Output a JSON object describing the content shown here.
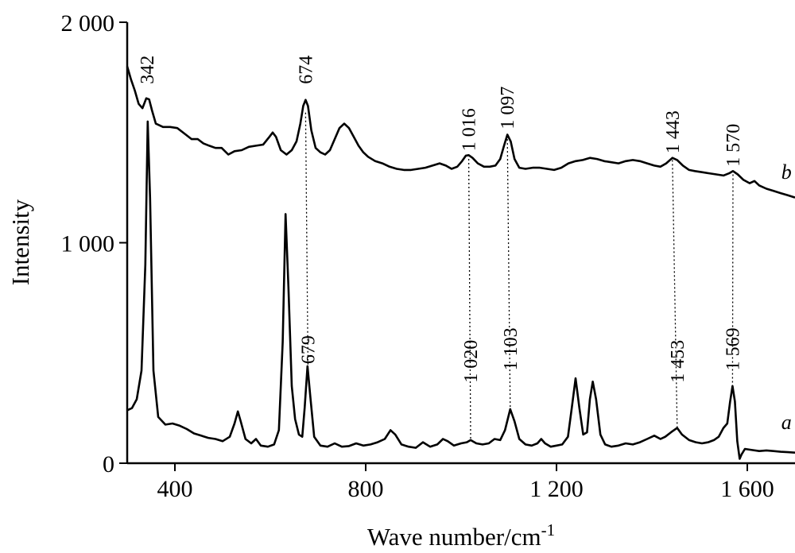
{
  "chart_data": {
    "type": "line",
    "xlabel": "Wave number/cm",
    "xlabel_sup": "-1",
    "ylabel": "Intensity",
    "xlim": [
      300,
      1700
    ],
    "ylim": [
      0,
      2000
    ],
    "x_ticks": [
      {
        "value": 400,
        "label": "400"
      },
      {
        "value": 800,
        "label": "800"
      },
      {
        "value": 1200,
        "label": "1 200"
      },
      {
        "value": 1600,
        "label": "1 600"
      }
    ],
    "y_ticks": [
      {
        "value": 0,
        "label": "0"
      },
      {
        "value": 1000,
        "label": "1 000"
      },
      {
        "value": 2000,
        "label": "2 000"
      }
    ],
    "grid": false,
    "series": [
      {
        "name": "a",
        "color": "#000000",
        "points": [
          [
            300,
            240
          ],
          [
            310,
            250
          ],
          [
            320,
            290
          ],
          [
            330,
            420
          ],
          [
            338,
            900
          ],
          [
            343,
            1550
          ],
          [
            348,
            1200
          ],
          [
            355,
            420
          ],
          [
            365,
            210
          ],
          [
            380,
            175
          ],
          [
            395,
            180
          ],
          [
            410,
            170
          ],
          [
            425,
            155
          ],
          [
            440,
            135
          ],
          [
            455,
            125
          ],
          [
            470,
            115
          ],
          [
            485,
            110
          ],
          [
            500,
            100
          ],
          [
            515,
            120
          ],
          [
            525,
            180
          ],
          [
            532,
            235
          ],
          [
            538,
            190
          ],
          [
            548,
            110
          ],
          [
            560,
            90
          ],
          [
            570,
            110
          ],
          [
            580,
            80
          ],
          [
            595,
            75
          ],
          [
            608,
            85
          ],
          [
            618,
            150
          ],
          [
            626,
            550
          ],
          [
            632,
            1130
          ],
          [
            638,
            800
          ],
          [
            645,
            350
          ],
          [
            652,
            200
          ],
          [
            660,
            130
          ],
          [
            667,
            120
          ],
          [
            672,
            250
          ],
          [
            678,
            440
          ],
          [
            684,
            300
          ],
          [
            692,
            120
          ],
          [
            705,
            80
          ],
          [
            720,
            75
          ],
          [
            735,
            90
          ],
          [
            750,
            75
          ],
          [
            765,
            78
          ],
          [
            780,
            90
          ],
          [
            795,
            80
          ],
          [
            810,
            85
          ],
          [
            825,
            95
          ],
          [
            840,
            110
          ],
          [
            852,
            150
          ],
          [
            862,
            130
          ],
          [
            875,
            85
          ],
          [
            890,
            75
          ],
          [
            905,
            70
          ],
          [
            920,
            95
          ],
          [
            935,
            75
          ],
          [
            950,
            85
          ],
          [
            962,
            110
          ],
          [
            972,
            100
          ],
          [
            985,
            80
          ],
          [
            1000,
            90
          ],
          [
            1012,
            95
          ],
          [
            1020,
            105
          ],
          [
            1032,
            90
          ],
          [
            1045,
            85
          ],
          [
            1058,
            90
          ],
          [
            1070,
            110
          ],
          [
            1082,
            105
          ],
          [
            1092,
            150
          ],
          [
            1103,
            245
          ],
          [
            1112,
            190
          ],
          [
            1122,
            110
          ],
          [
            1135,
            85
          ],
          [
            1148,
            80
          ],
          [
            1160,
            90
          ],
          [
            1168,
            110
          ],
          [
            1176,
            90
          ],
          [
            1188,
            75
          ],
          [
            1200,
            80
          ],
          [
            1212,
            85
          ],
          [
            1224,
            120
          ],
          [
            1232,
            250
          ],
          [
            1240,
            385
          ],
          [
            1248,
            250
          ],
          [
            1256,
            130
          ],
          [
            1264,
            140
          ],
          [
            1270,
            290
          ],
          [
            1276,
            370
          ],
          [
            1283,
            290
          ],
          [
            1292,
            130
          ],
          [
            1302,
            85
          ],
          [
            1315,
            75
          ],
          [
            1330,
            80
          ],
          [
            1345,
            90
          ],
          [
            1360,
            85
          ],
          [
            1375,
            95
          ],
          [
            1390,
            110
          ],
          [
            1405,
            125
          ],
          [
            1418,
            110
          ],
          [
            1428,
            120
          ],
          [
            1440,
            140
          ],
          [
            1453,
            160
          ],
          [
            1463,
            130
          ],
          [
            1478,
            105
          ],
          [
            1492,
            95
          ],
          [
            1505,
            90
          ],
          [
            1518,
            95
          ],
          [
            1530,
            105
          ],
          [
            1540,
            120
          ],
          [
            1550,
            160
          ],
          [
            1558,
            180
          ],
          [
            1564,
            280
          ],
          [
            1569,
            350
          ],
          [
            1574,
            280
          ],
          [
            1579,
            100
          ],
          [
            1584,
            20
          ],
          [
            1588,
            40
          ],
          [
            1595,
            65
          ],
          [
            1610,
            60
          ],
          [
            1625,
            55
          ],
          [
            1640,
            58
          ],
          [
            1655,
            55
          ],
          [
            1670,
            52
          ],
          [
            1685,
            50
          ],
          [
            1700,
            48
          ]
        ]
      },
      {
        "name": "b",
        "color": "#000000",
        "points": [
          [
            300,
            1800
          ],
          [
            308,
            1740
          ],
          [
            316,
            1690
          ],
          [
            324,
            1630
          ],
          [
            332,
            1610
          ],
          [
            340,
            1655
          ],
          [
            346,
            1650
          ],
          [
            352,
            1600
          ],
          [
            360,
            1540
          ],
          [
            375,
            1525
          ],
          [
            390,
            1525
          ],
          [
            405,
            1520
          ],
          [
            420,
            1495
          ],
          [
            435,
            1470
          ],
          [
            448,
            1470
          ],
          [
            460,
            1450
          ],
          [
            472,
            1440
          ],
          [
            485,
            1430
          ],
          [
            498,
            1430
          ],
          [
            512,
            1400
          ],
          [
            525,
            1415
          ],
          [
            540,
            1420
          ],
          [
            555,
            1435
          ],
          [
            570,
            1440
          ],
          [
            585,
            1445
          ],
          [
            598,
            1480
          ],
          [
            605,
            1500
          ],
          [
            612,
            1480
          ],
          [
            622,
            1420
          ],
          [
            634,
            1400
          ],
          [
            645,
            1420
          ],
          [
            655,
            1460
          ],
          [
            663,
            1540
          ],
          [
            669,
            1620
          ],
          [
            674,
            1648
          ],
          [
            679,
            1620
          ],
          [
            686,
            1510
          ],
          [
            695,
            1430
          ],
          [
            705,
            1410
          ],
          [
            715,
            1400
          ],
          [
            725,
            1420
          ],
          [
            735,
            1470
          ],
          [
            745,
            1520
          ],
          [
            755,
            1540
          ],
          [
            765,
            1520
          ],
          [
            775,
            1480
          ],
          [
            785,
            1440
          ],
          [
            795,
            1410
          ],
          [
            805,
            1390
          ],
          [
            820,
            1370
          ],
          [
            835,
            1360
          ],
          [
            850,
            1345
          ],
          [
            865,
            1335
          ],
          [
            880,
            1330
          ],
          [
            895,
            1330
          ],
          [
            910,
            1335
          ],
          [
            925,
            1340
          ],
          [
            940,
            1350
          ],
          [
            955,
            1360
          ],
          [
            968,
            1350
          ],
          [
            980,
            1335
          ],
          [
            992,
            1345
          ],
          [
            1002,
            1370
          ],
          [
            1010,
            1395
          ],
          [
            1016,
            1397
          ],
          [
            1024,
            1385
          ],
          [
            1035,
            1360
          ],
          [
            1048,
            1345
          ],
          [
            1060,
            1345
          ],
          [
            1072,
            1350
          ],
          [
            1082,
            1380
          ],
          [
            1090,
            1440
          ],
          [
            1097,
            1490
          ],
          [
            1104,
            1460
          ],
          [
            1112,
            1380
          ],
          [
            1122,
            1340
          ],
          [
            1135,
            1335
          ],
          [
            1150,
            1340
          ],
          [
            1165,
            1340
          ],
          [
            1180,
            1335
          ],
          [
            1195,
            1330
          ],
          [
            1210,
            1340
          ],
          [
            1225,
            1360
          ],
          [
            1240,
            1370
          ],
          [
            1255,
            1375
          ],
          [
            1270,
            1385
          ],
          [
            1285,
            1380
          ],
          [
            1300,
            1370
          ],
          [
            1315,
            1365
          ],
          [
            1330,
            1360
          ],
          [
            1345,
            1370
          ],
          [
            1360,
            1375
          ],
          [
            1375,
            1370
          ],
          [
            1390,
            1360
          ],
          [
            1405,
            1350
          ],
          [
            1418,
            1345
          ],
          [
            1430,
            1360
          ],
          [
            1443,
            1385
          ],
          [
            1453,
            1375
          ],
          [
            1465,
            1350
          ],
          [
            1478,
            1330
          ],
          [
            1490,
            1325
          ],
          [
            1505,
            1320
          ],
          [
            1520,
            1315
          ],
          [
            1535,
            1310
          ],
          [
            1550,
            1305
          ],
          [
            1562,
            1315
          ],
          [
            1570,
            1325
          ],
          [
            1580,
            1310
          ],
          [
            1592,
            1285
          ],
          [
            1605,
            1270
          ],
          [
            1615,
            1280
          ],
          [
            1625,
            1260
          ],
          [
            1640,
            1245
          ],
          [
            1655,
            1235
          ],
          [
            1670,
            1225
          ],
          [
            1685,
            1215
          ],
          [
            1700,
            1205
          ]
        ]
      }
    ],
    "peak_labels_b": [
      {
        "x": 342,
        "label": "342",
        "y_top": 1720
      },
      {
        "x": 674,
        "label": "674",
        "y_top": 1720
      },
      {
        "x": 1016,
        "label": "1 016",
        "y_top": 1415
      },
      {
        "x": 1097,
        "label": "1 097",
        "y_top": 1515
      },
      {
        "x": 1443,
        "label": "1 443",
        "y_top": 1405
      },
      {
        "x": 1570,
        "label": "1 570",
        "y_top": 1345
      }
    ],
    "peak_labels_a": [
      {
        "x": 679,
        "label": "679",
        "y_top": 450
      },
      {
        "x": 1020,
        "label": "1 020",
        "y_top": 365
      },
      {
        "x": 1103,
        "label": "1 103",
        "y_top": 420
      },
      {
        "x": 1453,
        "label": "1 453",
        "y_top": 365
      },
      {
        "x": 1569,
        "label": "1 569",
        "y_top": 420
      }
    ],
    "guide_lines": [
      {
        "x1": 674,
        "y1": 1590,
        "x2": 679,
        "y2": 440
      },
      {
        "x1": 1016,
        "y1": 1380,
        "x2": 1020,
        "y2": 105
      },
      {
        "x1": 1097,
        "y1": 1470,
        "x2": 1103,
        "y2": 245
      },
      {
        "x1": 1443,
        "y1": 1375,
        "x2": 1453,
        "y2": 160
      },
      {
        "x1": 1570,
        "y1": 1310,
        "x2": 1569,
        "y2": 350
      }
    ],
    "series_labels": [
      {
        "name": "b",
        "x": 1682,
        "y": 1290
      },
      {
        "name": "a",
        "x": 1682,
        "y": 155
      }
    ]
  }
}
